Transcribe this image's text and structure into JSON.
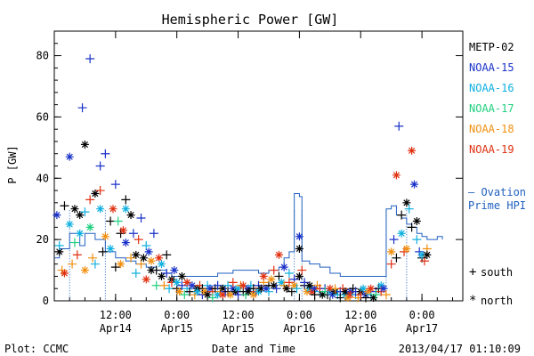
{
  "chart_data": {
    "type": "scatter",
    "title": "Hemispheric Power [GW]",
    "ylabel": "P [GW]",
    "xlabel": "Date and Time",
    "footer_left": "Plot: CCMC",
    "footer_right": "2013/04/17 01:10:09",
    "xlim_hours": [
      0,
      80
    ],
    "ylim": [
      0,
      88
    ],
    "y_ticks": [
      0,
      20,
      40,
      60,
      80
    ],
    "x_ticks": [
      {
        "h": 12,
        "time": "12:00",
        "date": "Apr14"
      },
      {
        "h": 24,
        "time": "0:00",
        "date": "Apr15"
      },
      {
        "h": 36,
        "time": "12:00",
        "date": "Apr15"
      },
      {
        "h": 48,
        "time": "0:00",
        "date": "Apr16"
      },
      {
        "h": 60,
        "time": "12:00",
        "date": "Apr16"
      },
      {
        "h": 72,
        "time": "0:00",
        "date": "Apr17"
      }
    ],
    "series": [
      {
        "name": "METP-02",
        "color": "#000000"
      },
      {
        "name": "NOAA-15",
        "color": "#1a32c8"
      },
      {
        "name": "NOAA-16",
        "color": "#10b0e0"
      },
      {
        "name": "NOAA-17",
        "color": "#20d080"
      },
      {
        "name": "NOAA-18",
        "color": "#f09010"
      },
      {
        "name": "NOAA-19",
        "color": "#e03010"
      }
    ],
    "ovation_label": [
      "— Ovation",
      "Prime HPI"
    ],
    "ovation_color": "#2060c0",
    "ovation": [
      [
        0,
        14
      ],
      [
        1,
        17
      ],
      [
        2,
        17
      ],
      [
        3,
        22
      ],
      [
        4,
        22
      ],
      [
        5,
        18
      ],
      [
        6,
        22
      ],
      [
        7,
        22
      ],
      [
        8,
        20
      ],
      [
        9,
        20
      ],
      [
        10,
        16
      ],
      [
        12,
        14
      ],
      [
        14,
        13
      ],
      [
        16,
        12
      ],
      [
        18,
        11
      ],
      [
        20,
        10
      ],
      [
        22,
        9
      ],
      [
        23,
        8
      ],
      [
        24,
        8
      ],
      [
        28,
        8
      ],
      [
        32,
        9
      ],
      [
        35,
        10
      ],
      [
        38,
        10
      ],
      [
        40,
        9
      ],
      [
        42,
        10
      ],
      [
        43,
        10
      ],
      [
        44,
        11
      ],
      [
        45,
        14
      ],
      [
        46,
        16
      ],
      [
        47,
        35
      ],
      [
        48,
        34
      ],
      [
        48.5,
        13
      ],
      [
        50,
        12
      ],
      [
        52,
        11
      ],
      [
        54,
        9
      ],
      [
        56,
        8
      ],
      [
        58,
        8
      ],
      [
        60,
        8
      ],
      [
        62,
        8
      ],
      [
        64,
        8
      ],
      [
        65,
        30
      ],
      [
        66,
        31
      ],
      [
        67,
        28
      ],
      [
        68,
        27
      ],
      [
        69,
        25
      ],
      [
        70,
        24
      ],
      [
        71,
        22
      ],
      [
        72,
        21
      ],
      [
        73,
        20
      ],
      [
        74,
        20
      ],
      [
        75,
        21
      ],
      [
        76,
        20
      ]
    ],
    "ovation_dotted_hours": [
      3,
      10,
      47,
      48.5,
      65,
      69
    ],
    "points": [
      [
        0.5,
        28,
        1,
        "n"
      ],
      [
        1,
        16,
        0,
        "n"
      ],
      [
        1,
        18,
        2,
        "s"
      ],
      [
        1.5,
        10,
        4,
        "s"
      ],
      [
        2,
        31,
        0,
        "s"
      ],
      [
        2,
        9,
        5,
        "n"
      ],
      [
        3,
        47,
        1,
        "n"
      ],
      [
        3,
        25,
        2,
        "n"
      ],
      [
        3.5,
        12,
        4,
        "s"
      ],
      [
        4,
        30,
        0,
        "n"
      ],
      [
        4,
        19,
        3,
        "s"
      ],
      [
        4.5,
        15,
        5,
        "s"
      ],
      [
        5,
        28,
        0,
        "n"
      ],
      [
        5,
        22,
        2,
        "n"
      ],
      [
        5.5,
        63,
        1,
        "s"
      ],
      [
        6,
        29,
        2,
        "s"
      ],
      [
        6,
        51,
        0,
        "n"
      ],
      [
        6,
        10,
        4,
        "n"
      ],
      [
        7,
        79,
        1,
        "s"
      ],
      [
        7,
        33,
        5,
        "s"
      ],
      [
        7,
        24,
        3,
        "n"
      ],
      [
        7.5,
        14,
        4,
        "s"
      ],
      [
        8,
        35,
        0,
        "n"
      ],
      [
        8,
        12,
        2,
        "s"
      ],
      [
        9,
        44,
        1,
        "s"
      ],
      [
        9,
        30,
        2,
        "n"
      ],
      [
        9,
        36,
        5,
        "s"
      ],
      [
        9.5,
        16,
        0,
        "s"
      ],
      [
        10,
        48,
        1,
        "s"
      ],
      [
        10,
        21,
        4,
        "n"
      ],
      [
        11,
        26,
        0,
        "s"
      ],
      [
        11,
        17,
        2,
        "n"
      ],
      [
        11.5,
        30,
        5,
        "n"
      ],
      [
        12,
        11,
        0,
        "s"
      ],
      [
        12,
        38,
        1,
        "s"
      ],
      [
        12.5,
        26,
        3,
        "s"
      ],
      [
        13,
        22,
        0,
        "s"
      ],
      [
        13,
        12,
        4,
        "n"
      ],
      [
        13.5,
        23,
        5,
        "n"
      ],
      [
        14,
        33,
        0,
        "s"
      ],
      [
        14,
        19,
        1,
        "n"
      ],
      [
        14,
        30,
        2,
        "n"
      ],
      [
        15,
        28,
        0,
        "n"
      ],
      [
        15,
        14,
        4,
        "s"
      ],
      [
        15.5,
        22,
        1,
        "s"
      ],
      [
        16,
        15,
        0,
        "n"
      ],
      [
        16,
        9,
        2,
        "s"
      ],
      [
        16.5,
        20,
        5,
        "s"
      ],
      [
        17,
        27,
        1,
        "s"
      ],
      [
        17,
        12,
        4,
        "s"
      ],
      [
        17.5,
        14,
        0,
        "n"
      ],
      [
        18,
        18,
        2,
        "s"
      ],
      [
        18,
        7,
        5,
        "n"
      ],
      [
        18.5,
        16,
        1,
        "n"
      ],
      [
        19,
        10,
        0,
        "n"
      ],
      [
        19,
        13,
        4,
        "n"
      ],
      [
        19.5,
        22,
        1,
        "s"
      ],
      [
        20,
        10,
        0,
        "s"
      ],
      [
        20,
        5,
        3,
        "s"
      ],
      [
        20.5,
        14,
        5,
        "n"
      ],
      [
        21,
        8,
        0,
        "n"
      ],
      [
        21,
        12,
        2,
        "n"
      ],
      [
        21.5,
        5,
        4,
        "s"
      ],
      [
        22,
        15,
        0,
        "s"
      ],
      [
        22,
        9,
        1,
        "s"
      ],
      [
        22.5,
        4,
        2,
        "s"
      ],
      [
        23,
        7,
        0,
        "n"
      ],
      [
        23,
        6,
        5,
        "s"
      ],
      [
        23.5,
        10,
        1,
        "n"
      ],
      [
        24,
        4,
        0,
        "s"
      ],
      [
        24,
        6,
        2,
        "n"
      ],
      [
        24.5,
        3,
        4,
        "n"
      ],
      [
        25,
        5,
        1,
        "s"
      ],
      [
        25,
        8,
        0,
        "n"
      ],
      [
        25.5,
        2,
        3,
        "s"
      ],
      [
        26,
        4,
        2,
        "s"
      ],
      [
        26,
        6,
        5,
        "n"
      ],
      [
        26.5,
        3,
        0,
        "s"
      ],
      [
        27,
        5,
        1,
        "n"
      ],
      [
        27.5,
        2,
        4,
        "s"
      ],
      [
        28,
        4,
        0,
        "n"
      ],
      [
        28,
        3,
        2,
        "n"
      ],
      [
        28.5,
        5,
        5,
        "s"
      ],
      [
        29,
        2,
        1,
        "s"
      ],
      [
        29,
        4,
        0,
        "s"
      ],
      [
        29.5,
        3,
        4,
        "n"
      ],
      [
        30,
        5,
        2,
        "s"
      ],
      [
        30,
        2,
        0,
        "n"
      ],
      [
        30.5,
        4,
        1,
        "n"
      ],
      [
        31,
        3,
        5,
        "s"
      ],
      [
        31,
        1,
        3,
        "s"
      ],
      [
        31.5,
        4,
        0,
        "s"
      ],
      [
        32,
        2,
        2,
        "n"
      ],
      [
        32,
        5,
        1,
        "s"
      ],
      [
        32.5,
        3,
        4,
        "s"
      ],
      [
        33,
        4,
        0,
        "n"
      ],
      [
        33,
        2,
        5,
        "n"
      ],
      [
        33.5,
        3,
        1,
        "s"
      ],
      [
        34,
        5,
        2,
        "s"
      ],
      [
        34,
        3,
        0,
        "s"
      ],
      [
        34.5,
        2,
        4,
        "n"
      ],
      [
        35,
        4,
        1,
        "n"
      ],
      [
        35,
        6,
        5,
        "s"
      ],
      [
        35.5,
        3,
        0,
        "n"
      ],
      [
        36,
        4,
        2,
        "n"
      ],
      [
        36,
        2,
        1,
        "s"
      ],
      [
        36.5,
        5,
        4,
        "s"
      ],
      [
        37,
        3,
        0,
        "s"
      ],
      [
        37,
        5,
        5,
        "n"
      ],
      [
        37.5,
        2,
        3,
        "s"
      ],
      [
        38,
        4,
        1,
        "n"
      ],
      [
        38,
        3,
        0,
        "n"
      ],
      [
        38.5,
        5,
        2,
        "s"
      ],
      [
        39,
        2,
        4,
        "n"
      ],
      [
        39,
        4,
        0,
        "s"
      ],
      [
        39.5,
        3,
        5,
        "s"
      ],
      [
        40,
        5,
        1,
        "s"
      ],
      [
        40,
        3,
        2,
        "n"
      ],
      [
        40.5,
        4,
        0,
        "n"
      ],
      [
        41,
        6,
        4,
        "s"
      ],
      [
        41,
        8,
        5,
        "n"
      ],
      [
        41.5,
        4,
        1,
        "n"
      ],
      [
        42,
        5,
        0,
        "s"
      ],
      [
        42,
        3,
        2,
        "s"
      ],
      [
        42.5,
        7,
        4,
        "n"
      ],
      [
        43,
        10,
        5,
        "s"
      ],
      [
        43,
        5,
        0,
        "n"
      ],
      [
        43.5,
        4,
        1,
        "s"
      ],
      [
        44,
        8,
        0,
        "s"
      ],
      [
        44,
        15,
        5,
        "n"
      ],
      [
        44.5,
        6,
        2,
        "n"
      ],
      [
        45,
        11,
        1,
        "n"
      ],
      [
        45,
        5,
        4,
        "s"
      ],
      [
        45.5,
        4,
        0,
        "n"
      ],
      [
        46,
        9,
        2,
        "s"
      ],
      [
        46,
        6,
        5,
        "s"
      ],
      [
        46.5,
        3,
        0,
        "s"
      ],
      [
        47,
        7,
        1,
        "s"
      ],
      [
        47,
        5,
        4,
        "n"
      ],
      [
        47.5,
        4,
        2,
        "s"
      ],
      [
        48,
        8,
        0,
        "n"
      ],
      [
        48,
        17,
        0,
        "n"
      ],
      [
        48,
        21,
        1,
        "n"
      ],
      [
        48.5,
        10,
        5,
        "s"
      ],
      [
        49,
        5,
        0,
        "s"
      ],
      [
        49,
        6,
        1,
        "s"
      ],
      [
        49.5,
        3,
        4,
        "n"
      ],
      [
        50,
        4,
        2,
        "n"
      ],
      [
        50,
        5,
        0,
        "n"
      ],
      [
        50.5,
        3,
        5,
        "n"
      ],
      [
        51,
        4,
        1,
        "n"
      ],
      [
        51,
        2,
        0,
        "s"
      ],
      [
        51.5,
        5,
        4,
        "s"
      ],
      [
        52,
        3,
        2,
        "s"
      ],
      [
        52,
        4,
        5,
        "s"
      ],
      [
        52.5,
        2,
        0,
        "n"
      ],
      [
        53,
        4,
        1,
        "s"
      ],
      [
        53,
        3,
        3,
        "s"
      ],
      [
        53.5,
        2,
        0,
        "s"
      ],
      [
        54,
        3,
        2,
        "n"
      ],
      [
        54,
        4,
        5,
        "n"
      ],
      [
        54.5,
        2,
        1,
        "n"
      ],
      [
        55,
        3,
        0,
        "n"
      ],
      [
        55,
        4,
        4,
        "s"
      ],
      [
        55.5,
        2,
        2,
        "s"
      ],
      [
        56,
        3,
        1,
        "s"
      ],
      [
        56,
        1,
        0,
        "s"
      ],
      [
        56.5,
        4,
        5,
        "s"
      ],
      [
        57,
        2,
        2,
        "n"
      ],
      [
        57,
        3,
        0,
        "n"
      ],
      [
        57.5,
        1,
        4,
        "n"
      ],
      [
        58,
        3,
        1,
        "n"
      ],
      [
        58,
        2,
        5,
        "n"
      ],
      [
        58.5,
        4,
        0,
        "s"
      ],
      [
        59,
        2,
        2,
        "s"
      ],
      [
        59,
        3,
        1,
        "s"
      ],
      [
        59.5,
        1,
        4,
        "s"
      ],
      [
        60,
        3,
        0,
        "n"
      ],
      [
        60,
        2,
        5,
        "s"
      ],
      [
        60.5,
        4,
        2,
        "n"
      ],
      [
        61,
        2,
        1,
        "n"
      ],
      [
        61,
        1,
        0,
        "s"
      ],
      [
        61.5,
        3,
        4,
        "n"
      ],
      [
        62,
        2,
        2,
        "s"
      ],
      [
        62,
        4,
        5,
        "n"
      ],
      [
        62.5,
        1,
        0,
        "n"
      ],
      [
        63,
        3,
        1,
        "s"
      ],
      [
        63,
        2,
        3,
        "s"
      ],
      [
        63.5,
        4,
        0,
        "s"
      ],
      [
        64,
        5,
        2,
        "n"
      ],
      [
        64,
        3,
        5,
        "s"
      ],
      [
        64.5,
        4,
        1,
        "n"
      ],
      [
        65,
        2,
        4,
        "s"
      ],
      [
        66,
        12,
        5,
        "s"
      ],
      [
        66,
        16,
        4,
        "n"
      ],
      [
        66.5,
        20,
        1,
        "s"
      ],
      [
        67,
        41,
        5,
        "n"
      ],
      [
        67,
        14,
        0,
        "s"
      ],
      [
        67.5,
        57,
        1,
        "s"
      ],
      [
        68,
        22,
        2,
        "n"
      ],
      [
        68,
        28,
        0,
        "s"
      ],
      [
        68.5,
        16,
        5,
        "s"
      ],
      [
        69,
        32,
        0,
        "n"
      ],
      [
        69,
        17,
        4,
        "n"
      ],
      [
        69.5,
        30,
        2,
        "s"
      ],
      [
        70,
        49,
        5,
        "n"
      ],
      [
        70,
        24,
        0,
        "s"
      ],
      [
        70.5,
        38,
        1,
        "n"
      ],
      [
        71,
        26,
        0,
        "n"
      ],
      [
        71,
        20,
        2,
        "s"
      ],
      [
        71.5,
        16,
        1,
        "s"
      ],
      [
        72,
        14,
        0,
        "s"
      ],
      [
        72,
        15,
        2,
        "n"
      ],
      [
        72.5,
        13,
        5,
        "s"
      ],
      [
        73,
        17,
        4,
        "s"
      ],
      [
        73,
        15,
        0,
        "n"
      ]
    ],
    "marker_legend": [
      {
        "symbol": "+",
        "label": "south"
      },
      {
        "symbol": "*",
        "label": "north"
      }
    ]
  }
}
